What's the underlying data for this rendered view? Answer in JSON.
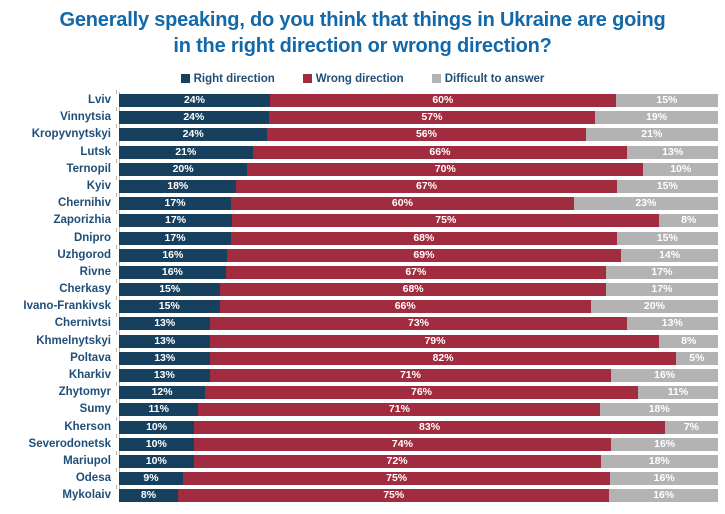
{
  "title": {
    "line1": "Generally speaking, do you think that things in Ukraine are going",
    "line2": "in the right direction or wrong direction?"
  },
  "colors": {
    "title_text": "#1268a8",
    "category_label_text": "#1f4e79",
    "legend_text": "#1f4e79",
    "axis_line": "#b7b7b7",
    "bar_value_text": "#ffffff",
    "background": "#ffffff"
  },
  "legend": {
    "items": [
      {
        "label": "Right direction",
        "color": "#17405e"
      },
      {
        "label": "Wrong direction",
        "color": "#a12b3f"
      },
      {
        "label": "Difficult to answer",
        "color": "#b3b3b3"
      }
    ]
  },
  "chart_data": {
    "type": "bar",
    "orientation": "horizontal",
    "stacked": true,
    "normalized_to_100": true,
    "grid": false,
    "legend_position": "top",
    "value_suffix": "%",
    "xlim": [
      0,
      100
    ],
    "title": "Generally speaking, do you think that things in Ukraine are going in the right direction or wrong direction?",
    "xlabel": "",
    "ylabel": "",
    "categories": [
      "Lviv",
      "Vinnytsia",
      "Kropyvnytskyi",
      "Lutsk",
      "Ternopil",
      "Kyiv",
      "Chernihiv",
      "Zaporizhia",
      "Dnipro",
      "Uzhgorod",
      "Rivne",
      "Cherkasy",
      "Ivano-Frankivsk",
      "Chernivtsi",
      "Khmelnytskyi",
      "Poltava",
      "Kharkiv",
      "Zhytomyr",
      "Sumy",
      "Kherson",
      "Severodonetsk",
      "Mariupol",
      "Odesa",
      "Mykolaiv"
    ],
    "series": [
      {
        "name": "Right direction",
        "color": "#17405e",
        "values": [
          24,
          24,
          24,
          21,
          20,
          18,
          17,
          17,
          17,
          16,
          16,
          15,
          15,
          13,
          13,
          13,
          13,
          12,
          11,
          10,
          10,
          10,
          9,
          8
        ]
      },
      {
        "name": "Wrong direction",
        "color": "#a12b3f",
        "values": [
          60,
          57,
          56,
          66,
          70,
          67,
          60,
          75,
          68,
          69,
          67,
          68,
          66,
          73,
          79,
          82,
          71,
          76,
          71,
          83,
          74,
          72,
          75,
          75
        ]
      },
      {
        "name": "Difficult to answer",
        "color": "#b3b3b3",
        "values": [
          15,
          19,
          21,
          13,
          10,
          15,
          23,
          8,
          15,
          14,
          17,
          17,
          20,
          13,
          8,
          5,
          16,
          11,
          18,
          7,
          16,
          18,
          16,
          16
        ]
      }
    ]
  }
}
